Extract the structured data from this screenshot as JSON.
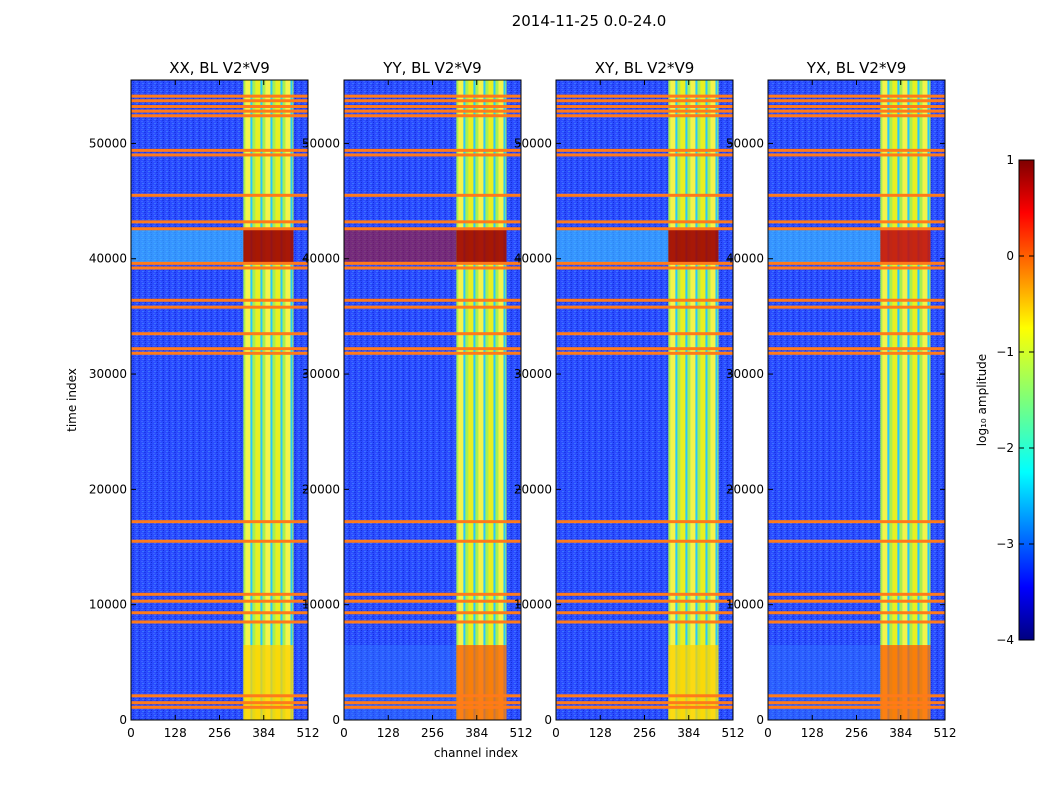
{
  "chart_data": {
    "type": "heatmap",
    "suptitle": "2014-11-25 0.0-24.0",
    "xlabel": "channel index",
    "ylabel": "time index",
    "xlim": [
      0,
      512
    ],
    "ylim": [
      0,
      55500
    ],
    "x_ticks": [
      0,
      128,
      256,
      384,
      512
    ],
    "y_ticks": [
      0,
      10000,
      20000,
      30000,
      40000,
      50000
    ],
    "panels": [
      {
        "title": "XX, BL V2*V9"
      },
      {
        "title": "YY, BL V2*V9"
      },
      {
        "title": "XY, BL V2*V9"
      },
      {
        "title": "YX, BL V2*V9"
      }
    ],
    "bright_band_channels": [
      [
        325,
        470
      ]
    ],
    "strong_time_ranges": [
      [
        39500,
        42500
      ],
      [
        0,
        6500
      ]
    ],
    "flagged_time_rows": [
      1100,
      1500,
      2100,
      8500,
      9300,
      10300,
      10900,
      15500,
      17200,
      31800,
      32200,
      33500,
      35800,
      36400,
      39200,
      39600,
      42600,
      43200,
      45500,
      49000,
      49400,
      52400,
      52800,
      53200,
      53700,
      54100
    ],
    "colorbar": {
      "label": "log₁₀ amplitude",
      "range": [
        -4,
        1
      ],
      "ticks": [
        "1",
        "0",
        "−1",
        "−2",
        "−3",
        "−4"
      ],
      "colormap": "jet"
    }
  }
}
